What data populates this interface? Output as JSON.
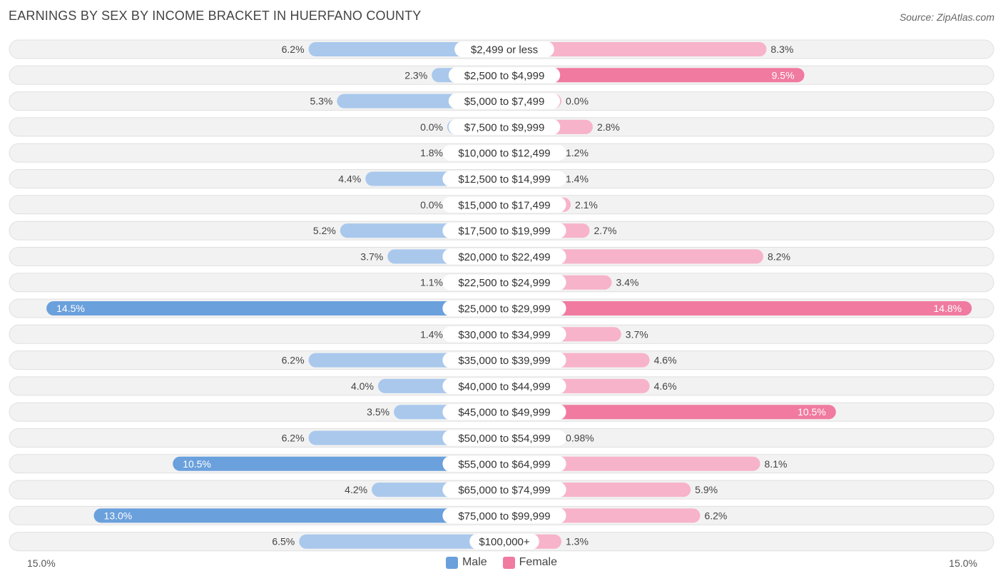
{
  "title": "EARNINGS BY SEX BY INCOME BRACKET IN HUERFANO COUNTY",
  "source": "Source: ZipAtlas.com",
  "axis": {
    "left_label": "15.0%",
    "right_label": "15.0%"
  },
  "legend": {
    "male": "Male",
    "female": "Female"
  },
  "colors": {
    "male": "#6aa0dc",
    "male_light": "#a9c8ec",
    "female": "#f07aa0",
    "female_light": "#f7b3c9",
    "row_bg": "#f2f2f2",
    "row_border": "#e0e0e0"
  },
  "chart_data": {
    "type": "bar",
    "orientation": "horizontal-diverging",
    "title": "EARNINGS BY SEX BY INCOME BRACKET IN HUERFANO COUNTY",
    "xlim": [
      -15,
      15
    ],
    "categories": [
      "$2,499 or less",
      "$2,500 to $4,999",
      "$5,000 to $7,499",
      "$7,500 to $9,999",
      "$10,000 to $12,499",
      "$12,500 to $14,999",
      "$15,000 to $17,499",
      "$17,500 to $19,999",
      "$20,000 to $22,499",
      "$22,500 to $24,999",
      "$25,000 to $29,999",
      "$30,000 to $34,999",
      "$35,000 to $39,999",
      "$40,000 to $44,999",
      "$45,000 to $49,999",
      "$50,000 to $54,999",
      "$55,000 to $64,999",
      "$65,000 to $74,999",
      "$75,000 to $99,999",
      "$100,000+"
    ],
    "series": [
      {
        "name": "Male",
        "values": [
          6.2,
          2.3,
          5.3,
          0.0,
          1.8,
          4.4,
          0.0,
          5.2,
          3.7,
          1.1,
          14.5,
          1.4,
          6.2,
          4.0,
          3.5,
          6.2,
          10.5,
          4.2,
          13.0,
          6.5
        ],
        "labels": [
          "6.2%",
          "2.3%",
          "5.3%",
          "0.0%",
          "1.8%",
          "4.4%",
          "0.0%",
          "5.2%",
          "3.7%",
          "1.1%",
          "14.5%",
          "1.4%",
          "6.2%",
          "4.0%",
          "3.5%",
          "6.2%",
          "10.5%",
          "4.2%",
          "13.0%",
          "6.5%"
        ]
      },
      {
        "name": "Female",
        "values": [
          8.3,
          9.5,
          0.0,
          2.8,
          1.2,
          1.4,
          2.1,
          2.7,
          8.2,
          3.4,
          14.8,
          3.7,
          4.6,
          4.6,
          10.5,
          0.98,
          8.1,
          5.9,
          6.2,
          1.3
        ],
        "labels": [
          "8.3%",
          "9.5%",
          "0.0%",
          "2.8%",
          "1.2%",
          "1.4%",
          "2.1%",
          "2.7%",
          "8.2%",
          "3.4%",
          "14.8%",
          "3.7%",
          "4.6%",
          "4.6%",
          "10.5%",
          "0.98%",
          "8.1%",
          "5.9%",
          "6.2%",
          "1.3%"
        ]
      }
    ]
  }
}
